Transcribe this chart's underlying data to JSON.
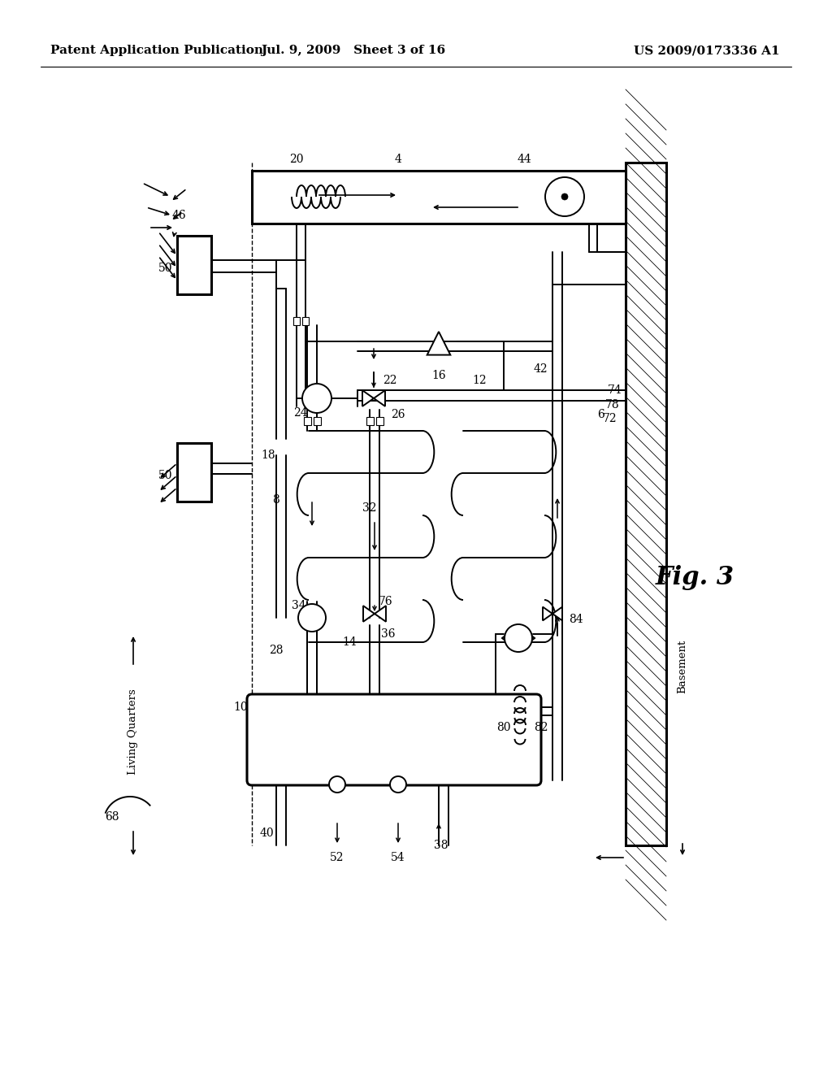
{
  "bg_color": "#ffffff",
  "lc": "#000000",
  "header_left": "Patent Application Publication",
  "header_mid": "Jul. 9, 2009   Sheet 3 of 16",
  "header_right": "US 2009/0173336 A1",
  "fig_label": "Fig. 3"
}
